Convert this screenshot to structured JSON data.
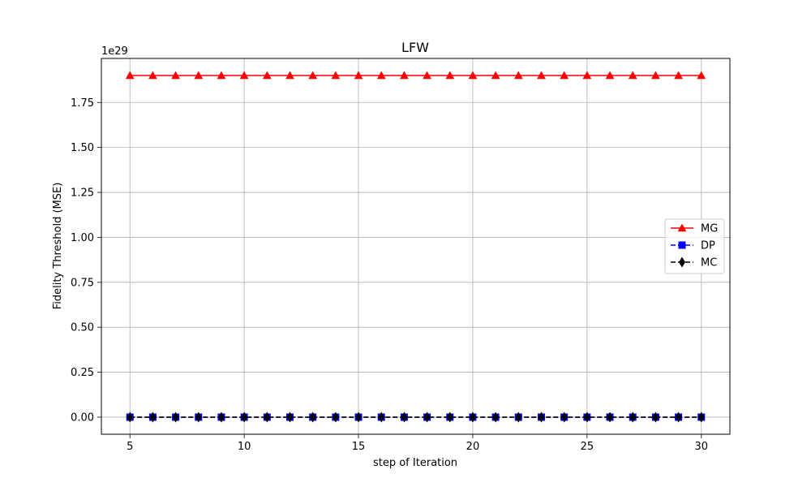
{
  "chart_data": {
    "type": "line",
    "title": "LFW",
    "xlabel": "step of Iteration",
    "ylabel": "Fidelity Threshold (MSE)",
    "y_offset_text": "1e29",
    "x": [
      5,
      6,
      7,
      8,
      9,
      10,
      11,
      12,
      13,
      14,
      15,
      16,
      17,
      18,
      19,
      20,
      21,
      22,
      23,
      24,
      25,
      26,
      27,
      28,
      29,
      30
    ],
    "xlim": [
      3.75,
      31.25
    ],
    "ylim": [
      -0.095,
      1.995
    ],
    "y_scale_factor": 1e+29,
    "x_ticks": [
      5,
      10,
      15,
      20,
      25,
      30
    ],
    "x_tick_labels": [
      "5",
      "10",
      "15",
      "20",
      "25",
      "30"
    ],
    "y_ticks": [
      0.0,
      0.25,
      0.5,
      0.75,
      1.0,
      1.25,
      1.5,
      1.75
    ],
    "y_tick_labels": [
      "0.00",
      "0.25",
      "0.50",
      "0.75",
      "1.00",
      "1.25",
      "1.50",
      "1.75"
    ],
    "grid": true,
    "legend_position": "center-right",
    "series": [
      {
        "name": "MG",
        "color": "#ff0000",
        "line_style": "solid",
        "marker": "triangle",
        "values": [
          1.9,
          1.9,
          1.9,
          1.9,
          1.9,
          1.9,
          1.9,
          1.9,
          1.9,
          1.9,
          1.9,
          1.9,
          1.9,
          1.9,
          1.9,
          1.9,
          1.9,
          1.9,
          1.9,
          1.9,
          1.9,
          1.9,
          1.9,
          1.9,
          1.9,
          1.9
        ]
      },
      {
        "name": "DP",
        "color": "#0000ff",
        "line_style": "dashed",
        "marker": "square",
        "values": [
          0,
          0,
          0,
          0,
          0,
          0,
          0,
          0,
          0,
          0,
          0,
          0,
          0,
          0,
          0,
          0,
          0,
          0,
          0,
          0,
          0,
          0,
          0,
          0,
          0,
          0
        ]
      },
      {
        "name": "MC",
        "color": "#000000",
        "line_style": "dashed",
        "marker": "diamond",
        "values": [
          0,
          0,
          0,
          0,
          0,
          0,
          0,
          0,
          0,
          0,
          0,
          0,
          0,
          0,
          0,
          0,
          0,
          0,
          0,
          0,
          0,
          0,
          0,
          0,
          0,
          0
        ]
      }
    ]
  }
}
